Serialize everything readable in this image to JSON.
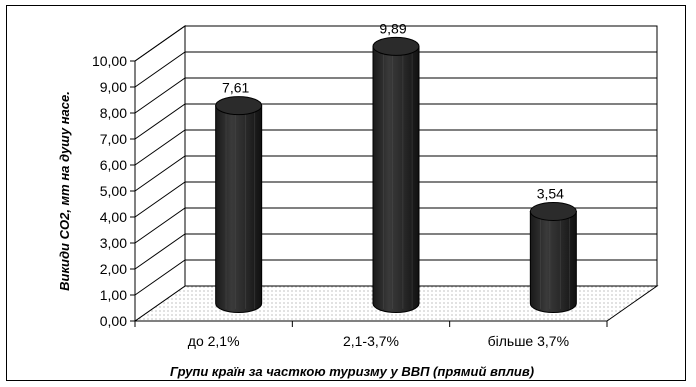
{
  "chart_data": {
    "type": "bar",
    "categories": [
      "до 2,1%",
      "2,1-3,7%",
      "більше 3,7%"
    ],
    "values": [
      7.61,
      9.89,
      3.54
    ],
    "value_labels": [
      "7,61",
      "9,89",
      "3,54"
    ],
    "ylabel": "Викиди CO2, мт на душу насе.",
    "xlabel": "Групи країн за часткою туризму у ВВП (прямий вплив)",
    "ylim": [
      0,
      10
    ],
    "yticks": [
      "0,00",
      "1,00",
      "2,00",
      "3,00",
      "4,00",
      "5,00",
      "6,00",
      "7,00",
      "8,00",
      "9,00",
      "10,00"
    ],
    "grid": true,
    "style": "3d-cylinder",
    "bar_color": "#2b2b2b"
  }
}
